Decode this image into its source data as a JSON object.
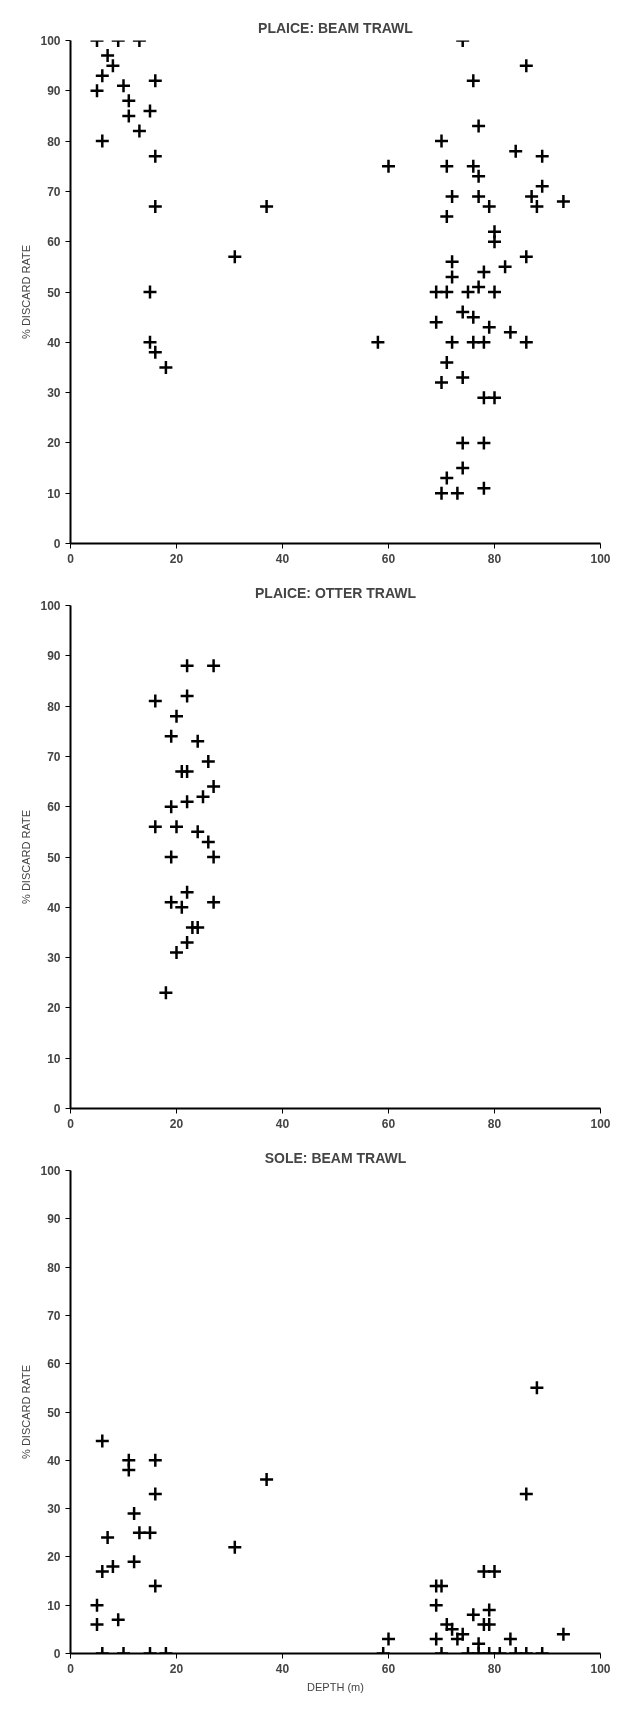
{
  "chart_data": [
    {
      "type": "scatter",
      "title": "PLAICE: BEAM TRAWL",
      "ylabel": "% DISCARD RATE",
      "marker": "cross",
      "grid": false,
      "xlim": [
        0,
        100
      ],
      "ylim": [
        0,
        100
      ],
      "xticks": [
        0,
        20,
        40,
        60,
        80,
        100
      ],
      "yticks": [
        0,
        10,
        20,
        30,
        40,
        50,
        60,
        70,
        80,
        90,
        100
      ],
      "series": [
        {
          "color": "#000000",
          "x": [
            5,
            9,
            13,
            7,
            8,
            6,
            5,
            10,
            11,
            11,
            13,
            15,
            16,
            6,
            16,
            16,
            15,
            15,
            16,
            18,
            31,
            37,
            58,
            60,
            74,
            86,
            76,
            77,
            70,
            84,
            89,
            71,
            76,
            77,
            89,
            72,
            77,
            87,
            88,
            93,
            79,
            71,
            80,
            80,
            86,
            72,
            72,
            78,
            82,
            69,
            71,
            75,
            77,
            80,
            74,
            76,
            79,
            83,
            86,
            69,
            72,
            76,
            78,
            71,
            70,
            74,
            78,
            80,
            74,
            78,
            74,
            71,
            70,
            73,
            78
          ],
          "values": [
            100,
            100,
            100,
            97,
            95,
            93,
            90,
            91,
            88,
            85,
            82,
            86,
            92,
            80,
            77,
            67,
            50,
            40,
            38,
            35,
            57,
            67,
            40,
            75,
            100,
            95,
            92,
            83,
            80,
            78,
            77,
            75,
            75,
            73,
            71,
            69,
            69,
            69,
            67,
            68,
            67,
            65,
            62,
            60,
            57,
            56,
            53,
            54,
            55,
            50,
            50,
            50,
            51,
            50,
            46,
            45,
            43,
            42,
            40,
            44,
            40,
            40,
            40,
            36,
            32,
            33,
            29,
            29,
            20,
            20,
            15,
            13,
            10,
            10,
            11
          ]
        }
      ]
    },
    {
      "type": "scatter",
      "title": "PLAICE: OTTER TRAWL",
      "ylabel": "% DISCARD RATE",
      "marker": "cross",
      "grid": false,
      "xlim": [
        0,
        100
      ],
      "ylim": [
        0,
        100
      ],
      "xticks": [
        0,
        20,
        40,
        60,
        80,
        100
      ],
      "yticks": [
        0,
        10,
        20,
        30,
        40,
        50,
        60,
        70,
        80,
        90,
        100
      ],
      "series": [
        {
          "color": "#000000",
          "x": [
            16,
            19,
            20,
            22,
            22,
            27,
            24,
            26,
            21,
            22,
            27,
            25,
            22,
            19,
            16,
            20,
            24,
            26,
            19,
            27,
            22,
            19,
            21,
            27,
            23,
            24,
            22,
            20,
            18
          ],
          "values": [
            81,
            74,
            78,
            82,
            88,
            88,
            73,
            69,
            67,
            67,
            64,
            62,
            61,
            60,
            56,
            56,
            55,
            53,
            50,
            50,
            43,
            41,
            40,
            41,
            36,
            36,
            33,
            31,
            23
          ]
        }
      ]
    },
    {
      "type": "scatter",
      "title": "SOLE: BEAM TRAWL",
      "xlabel": "DEPTH (m)",
      "ylabel": "% DISCARD RATE",
      "marker": "cross",
      "grid": false,
      "xlim": [
        0,
        100
      ],
      "ylim": [
        0,
        100
      ],
      "xticks": [
        0,
        20,
        40,
        60,
        80,
        100
      ],
      "yticks": [
        0,
        10,
        20,
        30,
        40,
        50,
        60,
        70,
        80,
        90,
        100
      ],
      "series": [
        {
          "color": "#000000",
          "x": [
            6,
            11,
            11,
            16,
            16,
            12,
            7,
            13,
            15,
            12,
            6,
            8,
            16,
            5,
            5,
            9,
            31,
            37,
            88,
            86,
            69,
            70,
            78,
            80,
            69,
            71,
            72,
            74,
            76,
            78,
            79,
            79,
            60,
            69,
            73,
            83,
            93,
            77,
            6,
            10,
            15,
            18,
            59,
            70,
            75,
            77,
            79,
            81,
            84,
            86,
            89
          ],
          "values": [
            44,
            40,
            38,
            40,
            33,
            29,
            24,
            25,
            25,
            19,
            17,
            18,
            14,
            10,
            6,
            7,
            22,
            36,
            55,
            33,
            14,
            14,
            17,
            17,
            10,
            6,
            5,
            4,
            8,
            6,
            9,
            6,
            3,
            3,
            3,
            3,
            4,
            2,
            0,
            0,
            0,
            0,
            0,
            0,
            0,
            0,
            0,
            0,
            0,
            0,
            0
          ]
        }
      ]
    }
  ]
}
